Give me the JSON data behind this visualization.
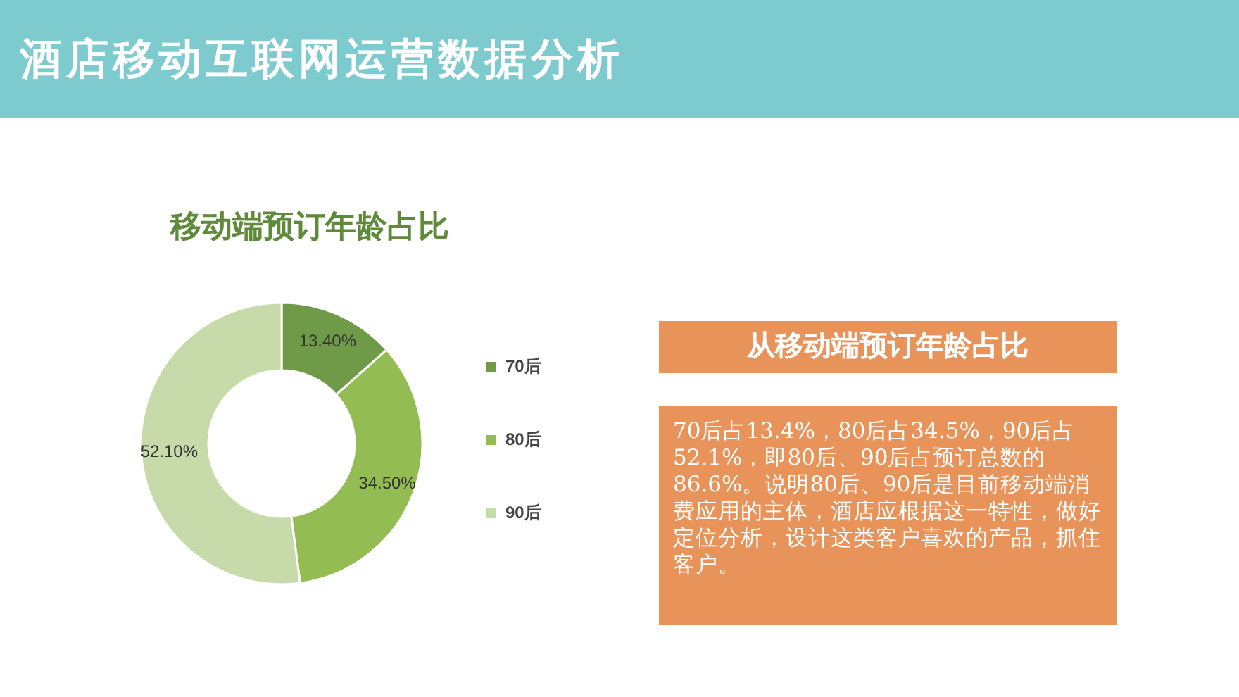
{
  "chart_data": [
    {
      "type": "donut",
      "title": "移动端预订年龄占比",
      "annotations": [
        "酒店移动互联网运营数据分析"
      ],
      "categories": [
        "70后",
        "80后",
        "90后"
      ],
      "values": [
        13.4,
        34.5,
        52.1
      ],
      "colors": [
        "#6f9a47",
        "#93bd53",
        "#c6dba9"
      ],
      "value_labels": [
        "13.40%",
        "34.50%",
        "52.10%"
      ],
      "legend": "right"
    },
    {
      "type": "other",
      "title": "从移动端预订年龄占比",
      "annotations": [
        "70后占13.4%，80后占34.5%，90后占52.1%，即80后、90后占预订总数的86.6%。说明80后、90后是目前移动端消费应用的主体，酒店应根据这一特性，做好定位分析，设计这类客户喜欢的产品，抓住客户。"
      ]
    }
  ]
}
